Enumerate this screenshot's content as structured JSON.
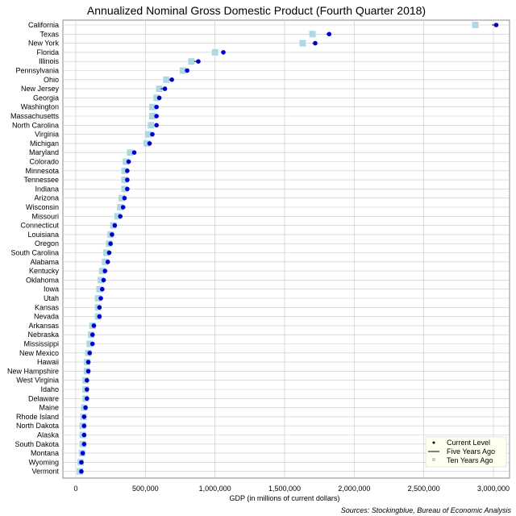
{
  "chart_data": {
    "type": "scatter",
    "title": "Annualized Nominal Gross Domestic Product (Fourth Quarter 2018)",
    "xlabel": "GDP (in millions of current dollars)",
    "source": "Sources: Stockingblue, Bureau of Economic Analysis",
    "xlim": [
      0,
      3100000
    ],
    "x_ticks": [
      0,
      500000,
      1000000,
      1500000,
      2000000,
      2500000,
      3000000
    ],
    "x_tick_labels": [
      "0",
      "500,000",
      "1,000,000",
      "1,500,000",
      "2,000,000",
      "2,500,000",
      "3,000,000"
    ],
    "grid": true,
    "legend_position": "bottom-right",
    "legend": [
      "Current Level",
      "Five Years Ago",
      "Ten Years Ago"
    ],
    "colors": {
      "current": "#0000cc",
      "five_years": "#000000",
      "ten_years": "#add8e6",
      "grid": "#c8c8c8"
    },
    "categories": [
      "California",
      "Texas",
      "New York",
      "Florida",
      "Illinois",
      "Pennsylvania",
      "Ohio",
      "New Jersey",
      "Georgia",
      "Washington",
      "Massachusetts",
      "North Carolina",
      "Virginia",
      "Michigan",
      "Maryland",
      "Colorado",
      "Minnesota",
      "Tennessee",
      "Indiana",
      "Arizona",
      "Wisconsin",
      "Missouri",
      "Connecticut",
      "Louisiana",
      "Oregon",
      "South Carolina",
      "Alabama",
      "Kentucky",
      "Oklahoma",
      "Iowa",
      "Utah",
      "Kansas",
      "Nevada",
      "Arkansas",
      "Nebraska",
      "Mississippi",
      "New Mexico",
      "Hawaii",
      "New Hampshire",
      "West Virginia",
      "Idaho",
      "Delaware",
      "Maine",
      "Rhode Island",
      "North Dakota",
      "Alaska",
      "South Dakota",
      "Montana",
      "Wyoming",
      "Vermont"
    ],
    "series": [
      {
        "name": "Current Level",
        "values": [
          3020000,
          1820000,
          1720000,
          1060000,
          880000,
          800000,
          690000,
          640000,
          600000,
          580000,
          580000,
          580000,
          550000,
          530000,
          420000,
          380000,
          370000,
          370000,
          370000,
          350000,
          340000,
          320000,
          280000,
          260000,
          250000,
          240000,
          230000,
          210000,
          200000,
          190000,
          180000,
          170000,
          170000,
          130000,
          120000,
          120000,
          100000,
          90000,
          90000,
          80000,
          80000,
          80000,
          70000,
          60000,
          60000,
          60000,
          60000,
          50000,
          40000,
          40000
        ]
      },
      {
        "name": "Five Years Ago",
        "values": [
          2990000,
          1800000,
          1700000,
          1050000,
          850000,
          790000,
          670000,
          610000,
          590000,
          570000,
          570000,
          570000,
          540000,
          520000,
          410000,
          370000,
          360000,
          360000,
          360000,
          340000,
          330000,
          310000,
          270000,
          250000,
          240000,
          230000,
          220000,
          200000,
          190000,
          180000,
          170000,
          160000,
          160000,
          120000,
          110000,
          110000,
          95000,
          85000,
          85000,
          75000,
          75000,
          75000,
          65000,
          55000,
          55000,
          55000,
          55000,
          45000,
          38000,
          35000
        ]
      },
      {
        "name": "Ten Years Ago",
        "values": [
          2870000,
          1700000,
          1630000,
          1000000,
          830000,
          770000,
          650000,
          600000,
          580000,
          550000,
          550000,
          540000,
          520000,
          510000,
          390000,
          360000,
          350000,
          350000,
          350000,
          330000,
          320000,
          300000,
          270000,
          250000,
          240000,
          220000,
          210000,
          190000,
          180000,
          170000,
          160000,
          160000,
          160000,
          120000,
          110000,
          100000,
          90000,
          80000,
          80000,
          70000,
          70000,
          70000,
          60000,
          55000,
          50000,
          50000,
          50000,
          45000,
          35000,
          30000
        ]
      }
    ]
  }
}
